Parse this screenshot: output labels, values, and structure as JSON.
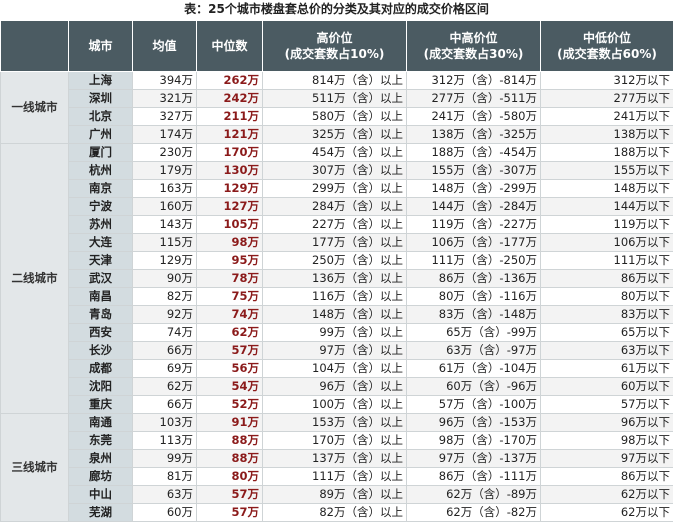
{
  "header": {
    "title": "表：25个城市楼盘套总价的分类及其对应的成交价格区间"
  },
  "table": {
    "columns": [
      [
        "城市"
      ],
      [
        "均值"
      ],
      [
        "中位数"
      ],
      [
        "高价位",
        "(成交套数占10%)"
      ],
      [
        "中高价位",
        "(成交套数占30%)"
      ],
      [
        "中低价位",
        "(成交套数占60%)"
      ]
    ],
    "groups": [
      {
        "label": "一线城市",
        "rows": [
          [
            "上海",
            "394万",
            "262万",
            "814万（含）以上",
            "312万（含）-814万",
            "312万以下"
          ],
          [
            "深圳",
            "321万",
            "242万",
            "511万（含）以上",
            "277万（含）-511万",
            "277万以下"
          ],
          [
            "北京",
            "327万",
            "211万",
            "580万（含）以上",
            "241万（含）-580万",
            "241万以下"
          ],
          [
            "广州",
            "174万",
            "121万",
            "325万（含）以上",
            "138万（含）-325万",
            "138万以下"
          ]
        ]
      },
      {
        "label": "二线城市",
        "rows": [
          [
            "厦门",
            "230万",
            "170万",
            "454万（含）以上",
            "188万（含）-454万",
            "188万以下"
          ],
          [
            "杭州",
            "179万",
            "130万",
            "307万（含）以上",
            "155万（含）-307万",
            "155万以下"
          ],
          [
            "南京",
            "163万",
            "129万",
            "299万（含）以上",
            "148万（含）-299万",
            "148万以下"
          ],
          [
            "宁波",
            "160万",
            "127万",
            "284万（含）以上",
            "144万（含）-284万",
            "144万以下"
          ],
          [
            "苏州",
            "143万",
            "105万",
            "227万（含）以上",
            "119万（含）-227万",
            "119万以下"
          ],
          [
            "大连",
            "115万",
            "98万",
            "177万（含）以上",
            "106万（含）-177万",
            "106万以下"
          ],
          [
            "天津",
            "129万",
            "95万",
            "250万（含）以上",
            "111万（含）-250万",
            "111万以下"
          ],
          [
            "武汉",
            "90万",
            "78万",
            "136万（含）以上",
            "86万（含）-136万",
            "86万以下"
          ],
          [
            "南昌",
            "82万",
            "75万",
            "116万（含）以上",
            "80万（含）-116万",
            "80万以下"
          ],
          [
            "青岛",
            "92万",
            "74万",
            "148万（含）以上",
            "83万（含）-148万",
            "83万以下"
          ],
          [
            "西安",
            "74万",
            "62万",
            "99万（含）以上",
            "65万（含）-99万",
            "65万以下"
          ],
          [
            "长沙",
            "66万",
            "57万",
            "97万（含）以上",
            "63万（含）-97万",
            "63万以下"
          ],
          [
            "成都",
            "69万",
            "56万",
            "104万（含）以上",
            "61万（含）-104万",
            "61万以下"
          ],
          [
            "沈阳",
            "62万",
            "54万",
            "96万（含）以上",
            "60万（含）-96万",
            "60万以下"
          ],
          [
            "重庆",
            "66万",
            "52万",
            "100万（含）以上",
            "57万（含）-100万",
            "57万以下"
          ]
        ]
      },
      {
        "label": "三线城市",
        "rows": [
          [
            "南通",
            "103万",
            "91万",
            "153万（含）以上",
            "96万（含）-153万",
            "96万以下"
          ],
          [
            "东莞",
            "113万",
            "88万",
            "170万（含）以上",
            "98万（含）-170万",
            "98万以下"
          ],
          [
            "泉州",
            "99万",
            "88万",
            "137万（含）以上",
            "97万（含）-137万",
            "97万以下"
          ],
          [
            "廊坊",
            "81万",
            "80万",
            "111万（含）以上",
            "86万（含）-111万",
            "86万以下"
          ],
          [
            "中山",
            "63万",
            "57万",
            "89万（含）以上",
            "62万（含）-89万",
            "62万以下"
          ],
          [
            "芜湖",
            "60万",
            "57万",
            "82万（含）以上",
            "62万（含）-82万",
            "62万以下"
          ]
        ]
      }
    ]
  }
}
